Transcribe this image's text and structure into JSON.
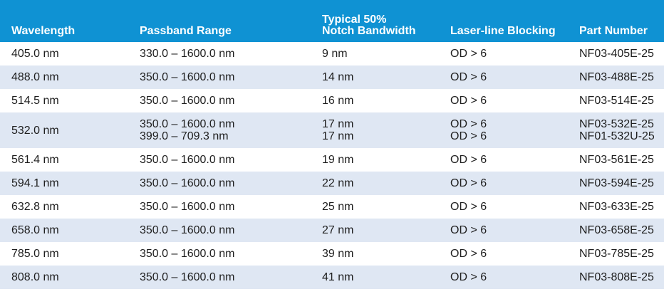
{
  "headers": {
    "wavelength": "Wavelength",
    "passband": "Passband Range",
    "bandwidth_line1": "Typical 50%",
    "bandwidth_line2": "Notch Bandwidth",
    "blocking": "Laser-line Blocking",
    "part": "Part Number"
  },
  "rows": [
    {
      "wavelength": "405.0 nm",
      "passband": [
        "330.0 – 1600.0 nm"
      ],
      "bandwidth": [
        "9 nm"
      ],
      "blocking": [
        "OD > 6"
      ],
      "part": [
        "NF03-405E-25"
      ]
    },
    {
      "wavelength": "488.0 nm",
      "passband": [
        "350.0 – 1600.0 nm"
      ],
      "bandwidth": [
        "14 nm"
      ],
      "blocking": [
        "OD > 6"
      ],
      "part": [
        "NF03-488E-25"
      ]
    },
    {
      "wavelength": "514.5 nm",
      "passband": [
        "350.0 – 1600.0 nm"
      ],
      "bandwidth": [
        "16 nm"
      ],
      "blocking": [
        "OD > 6"
      ],
      "part": [
        "NF03-514E-25"
      ]
    },
    {
      "wavelength": "532.0 nm",
      "passband": [
        "350.0 – 1600.0 nm",
        "399.0 – 709.3 nm"
      ],
      "bandwidth": [
        "17 nm",
        "17 nm"
      ],
      "blocking": [
        "OD > 6",
        "OD > 6"
      ],
      "part": [
        "NF03-532E-25",
        "NF01-532U-25"
      ]
    },
    {
      "wavelength": "561.4 nm",
      "passband": [
        "350.0 – 1600.0 nm"
      ],
      "bandwidth": [
        "19 nm"
      ],
      "blocking": [
        "OD > 6"
      ],
      "part": [
        "NF03-561E-25"
      ]
    },
    {
      "wavelength": "594.1 nm",
      "passband": [
        "350.0 – 1600.0 nm"
      ],
      "bandwidth": [
        "22 nm"
      ],
      "blocking": [
        "OD > 6"
      ],
      "part": [
        "NF03-594E-25"
      ]
    },
    {
      "wavelength": "632.8 nm",
      "passband": [
        "350.0 – 1600.0 nm"
      ],
      "bandwidth": [
        "25 nm"
      ],
      "blocking": [
        "OD > 6"
      ],
      "part": [
        "NF03-633E-25"
      ]
    },
    {
      "wavelength": "658.0 nm",
      "passband": [
        "350.0 – 1600.0 nm"
      ],
      "bandwidth": [
        "27 nm"
      ],
      "blocking": [
        "OD > 6"
      ],
      "part": [
        "NF03-658E-25"
      ]
    },
    {
      "wavelength": "785.0 nm",
      "passband": [
        "350.0 – 1600.0 nm"
      ],
      "bandwidth": [
        "39 nm"
      ],
      "blocking": [
        "OD > 6"
      ],
      "part": [
        "NF03-785E-25"
      ]
    },
    {
      "wavelength": "808.0 nm",
      "passband": [
        "350.0 – 1600.0 nm"
      ],
      "bandwidth": [
        "41 nm"
      ],
      "blocking": [
        "OD > 6"
      ],
      "part": [
        "NF03-808E-25"
      ]
    }
  ],
  "colors": {
    "header_bg": "#0f92d3",
    "header_text": "#ffffff",
    "stripe_bg": "#dfe7f3",
    "row_bg": "#ffffff",
    "text": "#1e1e1e"
  }
}
